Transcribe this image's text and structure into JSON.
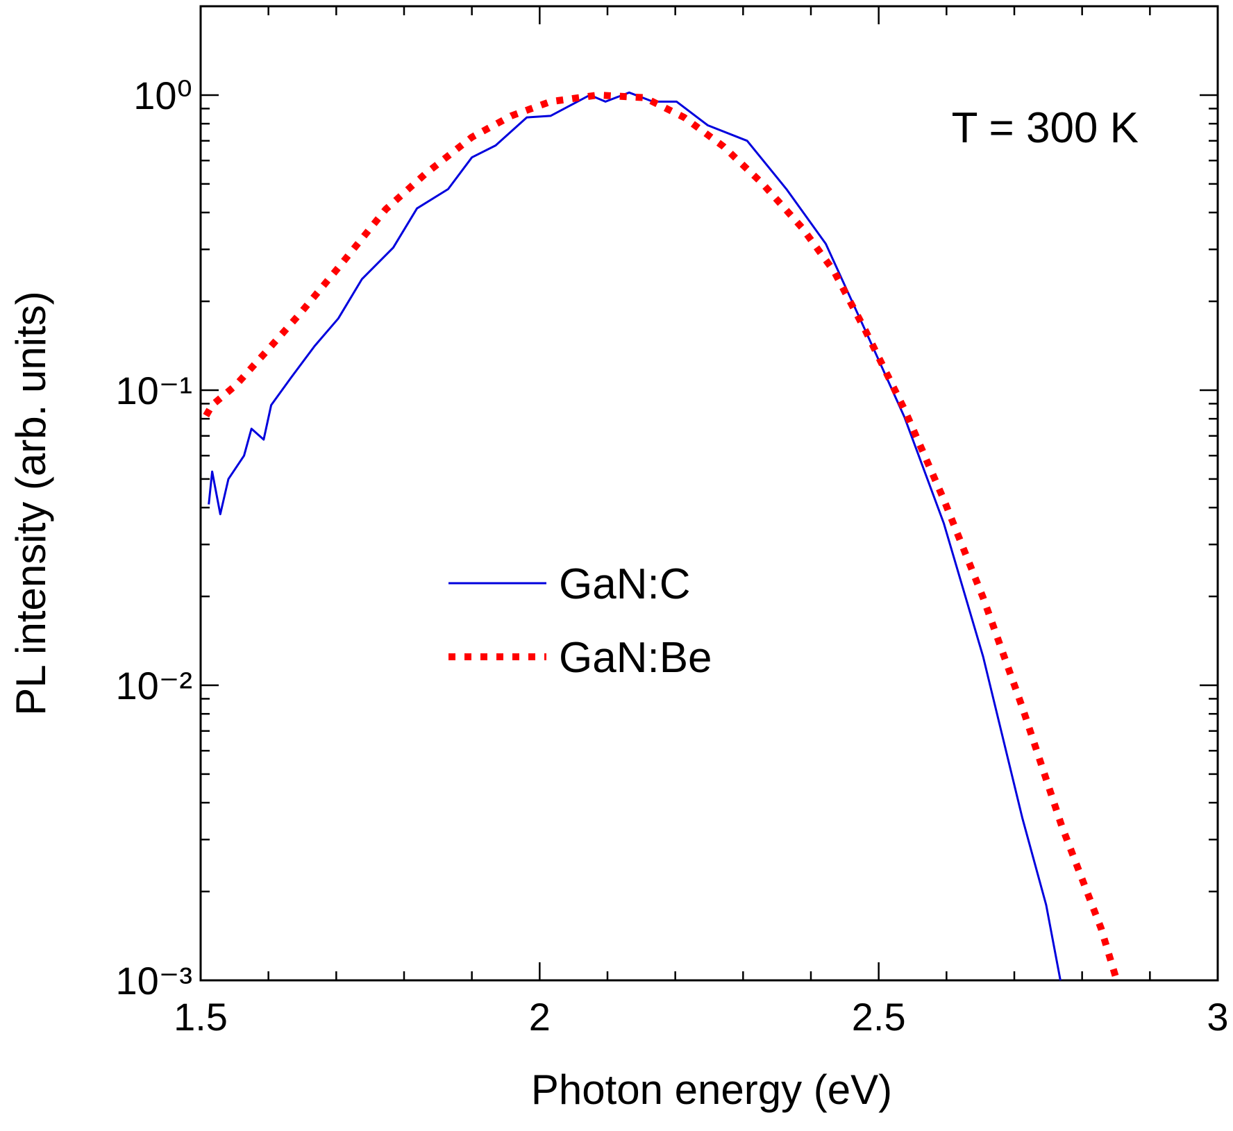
{
  "chart_data": {
    "type": "line",
    "x_label": "Photon energy (eV)",
    "y_label": "PL intensity (arb. units)",
    "annotation": "T = 300 K",
    "log_y": true,
    "legend": "center",
    "xlim": [
      1.5,
      3
    ],
    "xticks": [
      1.5,
      2,
      2.5,
      3
    ],
    "xminorticks": [
      1.6,
      1.7,
      1.8,
      1.9,
      2.1,
      2.2,
      2.3,
      2.4,
      2.6,
      2.7,
      2.8,
      2.9
    ],
    "ylim": [
      0.001,
      2
    ],
    "yticks": [
      {
        "value": 1,
        "label": "10⁰"
      },
      {
        "value": 0.1,
        "label": "10⁻¹"
      },
      {
        "value": 0.01,
        "label": "10⁻²"
      },
      {
        "value": 0.001,
        "label": "10⁻³"
      }
    ],
    "yminorticks": [
      0.002,
      0.003,
      0.004,
      0.005,
      0.006,
      0.007,
      0.008,
      0.009,
      0.02,
      0.03,
      0.04,
      0.05,
      0.06,
      0.07,
      0.08,
      0.09,
      0.2,
      0.3,
      0.4,
      0.5,
      0.6,
      0.7,
      0.8,
      0.9,
      2
    ],
    "series": [
      {
        "name": "GaN:C",
        "color": "#0000dd",
        "style": "solid",
        "x": [
          1.512,
          1.517,
          1.529,
          1.541,
          1.564,
          1.575,
          1.593,
          1.604,
          1.633,
          1.668,
          1.703,
          1.738,
          1.784,
          1.819,
          1.865,
          1.9,
          1.935,
          1.981,
          2.016,
          2.074,
          2.097,
          2.132,
          2.167,
          2.202,
          2.248,
          2.306,
          2.364,
          2.422,
          2.48,
          2.538,
          2.596,
          2.654,
          2.712,
          2.747,
          2.768
        ],
        "values": [
          0.041,
          0.053,
          0.038,
          0.05,
          0.06,
          0.074,
          0.068,
          0.089,
          0.11,
          0.141,
          0.175,
          0.238,
          0.304,
          0.413,
          0.48,
          0.615,
          0.675,
          0.84,
          0.85,
          1.0,
          0.95,
          1.02,
          0.95,
          0.95,
          0.79,
          0.7,
          0.48,
          0.313,
          0.16,
          0.081,
          0.0354,
          0.0125,
          0.00354,
          0.0018,
          0.001
        ]
      },
      {
        "name": "GaN:Be",
        "color": "#ff0000",
        "style": "dotted",
        "x": [
          1.508,
          1.517,
          1.552,
          1.599,
          1.645,
          1.703,
          1.773,
          1.831,
          1.9,
          1.958,
          2.016,
          2.086,
          2.155,
          2.213,
          2.271,
          2.329,
          2.387,
          2.434,
          2.48,
          2.538,
          2.596,
          2.654,
          2.712,
          2.77,
          2.828,
          2.851
        ],
        "values": [
          0.082,
          0.089,
          0.104,
          0.137,
          0.18,
          0.26,
          0.41,
          0.54,
          0.72,
          0.85,
          0.95,
          1.0,
          0.98,
          0.84,
          0.67,
          0.5,
          0.355,
          0.253,
          0.16,
          0.086,
          0.0426,
          0.0198,
          0.0084,
          0.00333,
          0.0015,
          0.001
        ]
      }
    ]
  }
}
